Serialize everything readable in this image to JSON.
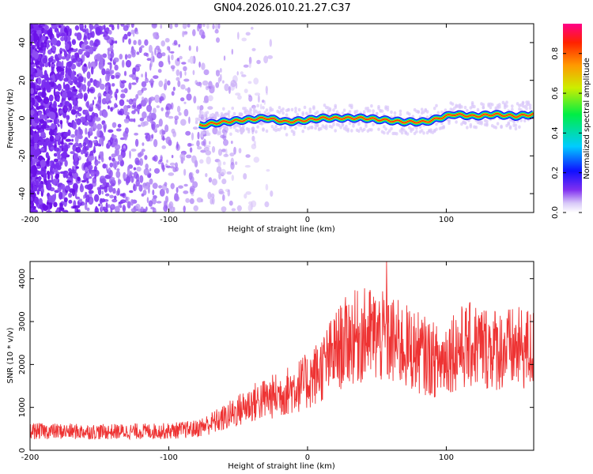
{
  "title": "GN04.2026.010.21.27.C37",
  "chart_data": [
    {
      "type": "heatmap",
      "name": "spectrogram",
      "xlabel": "Height of straight line (km)",
      "ylabel": "Frequency (Hz)",
      "xlim": [
        -200,
        163
      ],
      "ylim": [
        -50,
        50
      ],
      "xticks": [
        -200,
        -100,
        0,
        100
      ],
      "yticks": [
        -40,
        -20,
        0,
        20,
        40
      ],
      "colorbar": {
        "label": "Normalized spectral amplitude",
        "range": [
          0,
          0.95
        ],
        "ticks": [
          0.0,
          0.2,
          0.4,
          0.6,
          0.8
        ],
        "tick_labels": [
          "0.0",
          "0.2",
          "0.4",
          "0.6",
          "0.8"
        ]
      },
      "ridge": [
        {
          "x": -78,
          "y": -4
        },
        {
          "x": -70,
          "y": -3
        },
        {
          "x": -60,
          "y": -2
        },
        {
          "x": -45,
          "y": -1
        },
        {
          "x": -30,
          "y": 0
        },
        {
          "x": -15,
          "y": -2
        },
        {
          "x": 0,
          "y": -1
        },
        {
          "x": 10,
          "y": 0
        },
        {
          "x": 20,
          "y": 0
        },
        {
          "x": 30,
          "y": 0
        },
        {
          "x": 40,
          "y": 0
        },
        {
          "x": 55,
          "y": -1
        },
        {
          "x": 70,
          "y": -2
        },
        {
          "x": 85,
          "y": -2
        },
        {
          "x": 95,
          "y": 0
        },
        {
          "x": 105,
          "y": 2
        },
        {
          "x": 120,
          "y": 1
        },
        {
          "x": 135,
          "y": 2
        },
        {
          "x": 150,
          "y": 1
        },
        {
          "x": 163,
          "y": 2
        }
      ]
    },
    {
      "type": "line",
      "name": "snr",
      "xlabel": "Height of straight line (km)",
      "ylabel": "SNR (10 * v/v)",
      "xlim": [
        -200,
        163
      ],
      "ylim": [
        0,
        4400
      ],
      "xticks": [
        -200,
        -100,
        0,
        100
      ],
      "yticks": [
        0,
        1000,
        2000,
        3000,
        4000
      ],
      "color": "#ee3333",
      "envelope": [
        {
          "x": -200,
          "y": 450
        },
        {
          "x": -150,
          "y": 430
        },
        {
          "x": -100,
          "y": 450
        },
        {
          "x": -80,
          "y": 500
        },
        {
          "x": -60,
          "y": 750
        },
        {
          "x": -40,
          "y": 1100
        },
        {
          "x": -20,
          "y": 1300
        },
        {
          "x": 0,
          "y": 1600
        },
        {
          "x": 10,
          "y": 1900
        },
        {
          "x": 20,
          "y": 2300
        },
        {
          "x": 30,
          "y": 2600
        },
        {
          "x": 45,
          "y": 2700
        },
        {
          "x": 60,
          "y": 2550
        },
        {
          "x": 75,
          "y": 2350
        },
        {
          "x": 85,
          "y": 2200
        },
        {
          "x": 95,
          "y": 2050
        },
        {
          "x": 105,
          "y": 2350
        },
        {
          "x": 120,
          "y": 2450
        },
        {
          "x": 140,
          "y": 2350
        },
        {
          "x": 163,
          "y": 2350
        }
      ],
      "peak": {
        "x": 57,
        "y": 4400
      }
    }
  ]
}
